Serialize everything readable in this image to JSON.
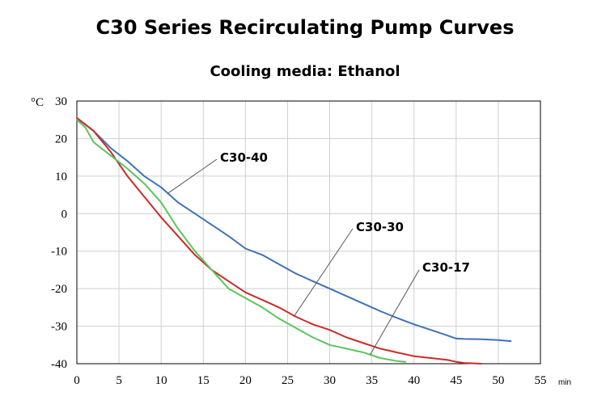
{
  "chart_data": {
    "type": "line",
    "title": "C30 Series Recirculating Pump Curves",
    "subtitle": "Cooling media: Ethanol",
    "ylabel": "°C",
    "xlabel": "min",
    "xlim": [
      0,
      55
    ],
    "ylim": [
      -40,
      30
    ],
    "x_ticks": [
      "0",
      "5",
      "10",
      "15",
      "20",
      "25",
      "30",
      "35",
      "40",
      "45",
      "50",
      "55"
    ],
    "y_ticks": [
      "30",
      "20",
      "10",
      "0",
      "-10",
      "-20",
      "-30",
      "-40"
    ],
    "grid": true,
    "series": [
      {
        "name": "C30-40",
        "color": "#3f72b8",
        "x": [
          0,
          2,
          4,
          6,
          8,
          10,
          12,
          14,
          16,
          18,
          20,
          22,
          24,
          26,
          28,
          30,
          32,
          34,
          36,
          38,
          40,
          42,
          44,
          45,
          46,
          48,
          50,
          51.5
        ],
        "y": [
          25.5,
          22,
          17.5,
          14,
          10,
          7,
          3,
          0,
          -3,
          -6,
          -9.3,
          -11,
          -13.5,
          -16,
          -18,
          -20,
          -22,
          -24,
          -26,
          -27.8,
          -29.5,
          -31,
          -32.5,
          -33.3,
          -33.4,
          -33.5,
          -33.7,
          -34
        ]
      },
      {
        "name": "C30-30",
        "color": "#cc2a2a",
        "x": [
          0,
          2,
          4,
          6,
          8,
          10,
          12,
          14,
          16,
          18,
          20,
          22,
          24,
          26,
          28,
          30,
          32,
          34,
          36,
          38,
          40,
          42,
          44,
          45,
          46,
          48
        ],
        "y": [
          25.5,
          22,
          16.5,
          10,
          4.5,
          -1,
          -6,
          -11,
          -15,
          -18,
          -21,
          -23,
          -25,
          -27.5,
          -29.5,
          -31,
          -33,
          -34.5,
          -36,
          -37,
          -38,
          -38.5,
          -39,
          -39.5,
          -39.8,
          -40
        ]
      },
      {
        "name": "C30-17",
        "color": "#5cc55c",
        "x": [
          0,
          1,
          2,
          4,
          6,
          8,
          10,
          12,
          14,
          16,
          18,
          20,
          22,
          24,
          26,
          28,
          30,
          32,
          34,
          36,
          38,
          39
        ],
        "y": [
          25,
          23,
          19,
          15.5,
          12,
          8,
          3,
          -4,
          -10,
          -15,
          -20,
          -22.5,
          -25,
          -28,
          -30.5,
          -33,
          -35,
          -36,
          -37,
          -38.5,
          -39.3,
          -39.5
        ]
      }
    ],
    "annotations": [
      {
        "text": "C30-40",
        "series": "C30-40",
        "at_x": 10.8
      },
      {
        "text": "C30-30",
        "series": "C30-30",
        "at_x": 25.8
      },
      {
        "text": "C30-17",
        "series": "C30-17",
        "at_x": 34.8
      }
    ]
  }
}
